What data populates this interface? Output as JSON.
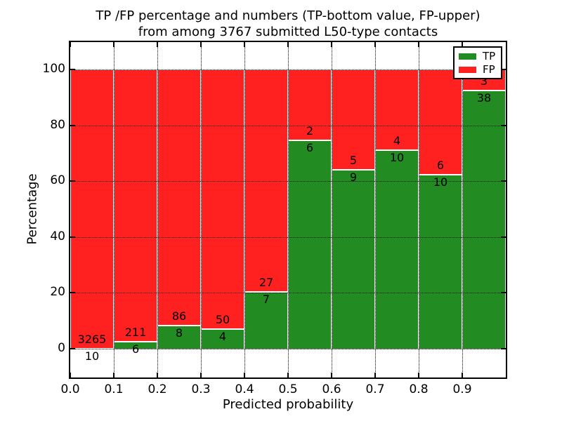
{
  "title": {
    "line1": "TP /FP percentage and numbers (TP-bottom value, FP-upper)",
    "line2": "from among 3767 submitted L50-type contacts"
  },
  "axes": {
    "xlabel": "Predicted probability",
    "ylabel": "Percentage",
    "x_tick_labels": [
      "0.0",
      "0.1",
      "0.2",
      "0.3",
      "0.4",
      "0.5",
      "0.6",
      "0.7",
      "0.8",
      "0.9"
    ],
    "y_tick_labels": [
      "0",
      "20",
      "40",
      "60",
      "80",
      "100"
    ],
    "y_tick_values": [
      0,
      20,
      40,
      60,
      80,
      100
    ]
  },
  "legend": {
    "position": "upper right",
    "items": [
      {
        "label": "TP",
        "color": "#228b22"
      },
      {
        "label": "FP",
        "color": "#ff2020"
      }
    ]
  },
  "chart_data": {
    "type": "bar",
    "stacked": true,
    "percent_normalized": true,
    "title": "TP /FP percentage and numbers (TP-bottom value, FP-upper) from among 3767 submitted L50-type contacts",
    "xlabel": "Predicted probability",
    "ylabel": "Percentage",
    "xlim": [
      0.0,
      1.0
    ],
    "ylim_display": [
      -10.5,
      110
    ],
    "grid": "dotted",
    "legend_position": "upper right",
    "bin_width": 0.1,
    "bin_starts": [
      0.0,
      0.1,
      0.2,
      0.3,
      0.4,
      0.5,
      0.6,
      0.7,
      0.8,
      0.9
    ],
    "series": [
      {
        "name": "TP",
        "color": "#228b22",
        "counts": [
          10,
          6,
          8,
          4,
          7,
          6,
          9,
          10,
          10,
          38
        ]
      },
      {
        "name": "FP",
        "color": "#ff2020",
        "counts": [
          3265,
          211,
          86,
          50,
          27,
          2,
          5,
          4,
          6,
          3
        ]
      }
    ],
    "tp_percent": [
      0.31,
      2.76,
      8.51,
      7.41,
      20.59,
      75.0,
      64.29,
      71.43,
      62.5,
      92.68
    ],
    "total_contacts": 3767
  }
}
